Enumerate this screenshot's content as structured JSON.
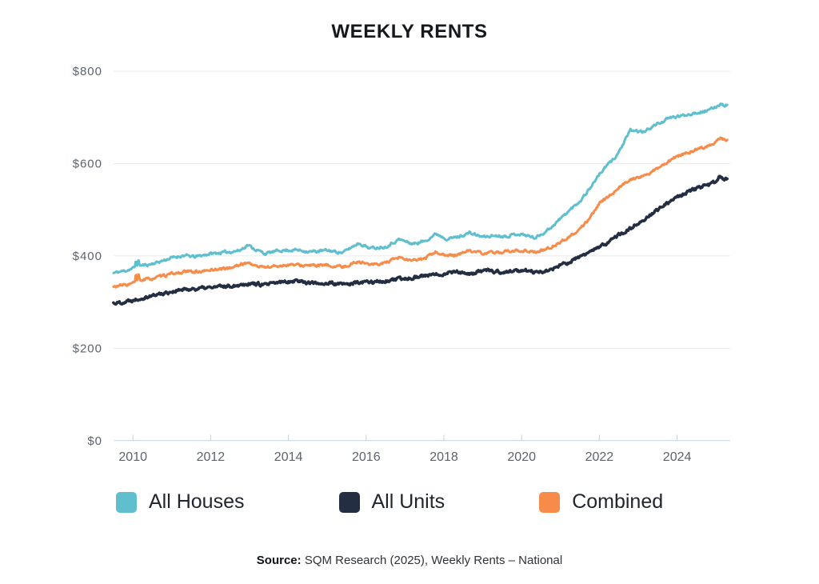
{
  "title": "WEEKLY RENTS",
  "legend": {
    "items": [
      {
        "label": "All Houses",
        "color": "#5fbfce"
      },
      {
        "label": "All Units",
        "color": "#242e42"
      },
      {
        "label": "Combined",
        "color": "#f78c4a"
      }
    ]
  },
  "source": {
    "prefix": "Source:",
    "text": " SQM Research (2025), Weekly Rents – National"
  },
  "chart_data": {
    "type": "line",
    "title": "WEEKLY RENTS",
    "xlabel": "",
    "ylabel": "",
    "unit": "AUD per week",
    "xlim": [
      2009.5,
      2025.3
    ],
    "ylim": [
      0,
      800
    ],
    "grid": "horizontal",
    "legend_position": "bottom",
    "y_ticks": [
      {
        "label": "$800",
        "value": 800
      },
      {
        "label": "$600",
        "value": 600
      },
      {
        "label": "$400",
        "value": 400
      },
      {
        "label": "$200",
        "value": 200
      },
      {
        "label": "$0",
        "value": 0
      }
    ],
    "x_ticks": [
      {
        "label": "2010",
        "value": 2010
      },
      {
        "label": "2012",
        "value": 2012
      },
      {
        "label": "2014",
        "value": 2014
      },
      {
        "label": "2016",
        "value": 2016
      },
      {
        "label": "2018",
        "value": 2018
      },
      {
        "label": "2020",
        "value": 2020
      },
      {
        "label": "2022",
        "value": 2022
      },
      {
        "label": "2024",
        "value": 2024
      }
    ],
    "series": [
      {
        "name": "All Houses",
        "color": "#5fbfce",
        "points": [
          [
            2009.5,
            363
          ],
          [
            2009.8,
            368
          ],
          [
            2010.0,
            373
          ],
          [
            2010.05,
            376
          ],
          [
            2010.08,
            394
          ],
          [
            2010.11,
            378
          ],
          [
            2010.14,
            392
          ],
          [
            2010.18,
            379
          ],
          [
            2010.4,
            381
          ],
          [
            2010.7,
            388
          ],
          [
            2011.0,
            396
          ],
          [
            2011.3,
            401
          ],
          [
            2011.6,
            398
          ],
          [
            2012.0,
            405
          ],
          [
            2012.4,
            408
          ],
          [
            2012.75,
            412
          ],
          [
            2012.95,
            424
          ],
          [
            2013.15,
            414
          ],
          [
            2013.4,
            405
          ],
          [
            2013.8,
            412
          ],
          [
            2014.2,
            413
          ],
          [
            2014.6,
            409
          ],
          [
            2015.0,
            412
          ],
          [
            2015.4,
            407
          ],
          [
            2015.8,
            428
          ],
          [
            2016.1,
            417
          ],
          [
            2016.5,
            420
          ],
          [
            2016.85,
            436
          ],
          [
            2017.2,
            426
          ],
          [
            2017.5,
            432
          ],
          [
            2017.8,
            448
          ],
          [
            2018.1,
            437
          ],
          [
            2018.4,
            442
          ],
          [
            2018.65,
            450
          ],
          [
            2019.0,
            441
          ],
          [
            2019.3,
            444
          ],
          [
            2019.6,
            443
          ],
          [
            2019.9,
            448
          ],
          [
            2020.1,
            445
          ],
          [
            2020.35,
            439
          ],
          [
            2020.6,
            452
          ],
          [
            2020.8,
            465
          ],
          [
            2021.0,
            481
          ],
          [
            2021.25,
            500
          ],
          [
            2021.5,
            519
          ],
          [
            2021.75,
            546
          ],
          [
            2022.0,
            577
          ],
          [
            2022.2,
            596
          ],
          [
            2022.45,
            618
          ],
          [
            2022.65,
            648
          ],
          [
            2022.8,
            672
          ],
          [
            2023.0,
            670
          ],
          [
            2023.15,
            668
          ],
          [
            2023.35,
            680
          ],
          [
            2023.6,
            690
          ],
          [
            2023.85,
            700
          ],
          [
            2024.1,
            703
          ],
          [
            2024.35,
            708
          ],
          [
            2024.6,
            712
          ],
          [
            2024.85,
            716
          ],
          [
            2025.0,
            723
          ],
          [
            2025.12,
            730
          ],
          [
            2025.22,
            726
          ],
          [
            2025.3,
            728
          ]
        ]
      },
      {
        "name": "All Units",
        "color": "#242e42",
        "points": [
          [
            2009.5,
            298
          ],
          [
            2009.75,
            300
          ],
          [
            2010.0,
            305
          ],
          [
            2010.3,
            311
          ],
          [
            2010.6,
            316
          ],
          [
            2011.0,
            323
          ],
          [
            2011.4,
            328
          ],
          [
            2011.8,
            330
          ],
          [
            2012.2,
            333
          ],
          [
            2012.6,
            336
          ],
          [
            2013.0,
            341
          ],
          [
            2013.4,
            337
          ],
          [
            2013.8,
            343
          ],
          [
            2014.2,
            347
          ],
          [
            2014.6,
            341
          ],
          [
            2015.0,
            341
          ],
          [
            2015.4,
            338
          ],
          [
            2015.8,
            342
          ],
          [
            2016.2,
            344
          ],
          [
            2016.6,
            346
          ],
          [
            2017.0,
            351
          ],
          [
            2017.4,
            356
          ],
          [
            2017.8,
            359
          ],
          [
            2018.1,
            364
          ],
          [
            2018.35,
            367
          ],
          [
            2018.6,
            359
          ],
          [
            2018.9,
            366
          ],
          [
            2019.2,
            368
          ],
          [
            2019.5,
            364
          ],
          [
            2019.8,
            367
          ],
          [
            2020.1,
            369
          ],
          [
            2020.4,
            363
          ],
          [
            2020.7,
            369
          ],
          [
            2021.0,
            379
          ],
          [
            2021.3,
            390
          ],
          [
            2021.6,
            402
          ],
          [
            2022.0,
            418
          ],
          [
            2022.4,
            440
          ],
          [
            2022.8,
            460
          ],
          [
            2023.2,
            483
          ],
          [
            2023.6,
            506
          ],
          [
            2024.0,
            526
          ],
          [
            2024.4,
            543
          ],
          [
            2024.7,
            551
          ],
          [
            2024.9,
            556
          ],
          [
            2025.0,
            561
          ],
          [
            2025.1,
            571
          ],
          [
            2025.2,
            566
          ],
          [
            2025.3,
            566
          ]
        ]
      },
      {
        "name": "Combined",
        "color": "#f78c4a",
        "points": [
          [
            2009.5,
            333
          ],
          [
            2009.8,
            337
          ],
          [
            2010.0,
            341
          ],
          [
            2010.05,
            343
          ],
          [
            2010.08,
            361
          ],
          [
            2010.11,
            346
          ],
          [
            2010.14,
            359
          ],
          [
            2010.18,
            347
          ],
          [
            2010.5,
            351
          ],
          [
            2011.0,
            361
          ],
          [
            2011.4,
            366
          ],
          [
            2011.8,
            366
          ],
          [
            2012.0,
            370
          ],
          [
            2012.5,
            374
          ],
          [
            2012.95,
            386
          ],
          [
            2013.2,
            377
          ],
          [
            2013.5,
            376
          ],
          [
            2014.0,
            381
          ],
          [
            2014.5,
            379
          ],
          [
            2015.0,
            379
          ],
          [
            2015.4,
            376
          ],
          [
            2015.8,
            388
          ],
          [
            2016.15,
            381
          ],
          [
            2016.5,
            385
          ],
          [
            2016.85,
            396
          ],
          [
            2017.2,
            389
          ],
          [
            2017.5,
            394
          ],
          [
            2017.8,
            409
          ],
          [
            2018.1,
            399
          ],
          [
            2018.4,
            404
          ],
          [
            2018.65,
            412
          ],
          [
            2019.0,
            405
          ],
          [
            2019.4,
            408
          ],
          [
            2019.8,
            410
          ],
          [
            2020.1,
            412
          ],
          [
            2020.4,
            408
          ],
          [
            2020.7,
            417
          ],
          [
            2021.0,
            430
          ],
          [
            2021.3,
            446
          ],
          [
            2021.6,
            466
          ],
          [
            2021.8,
            487
          ],
          [
            2022.0,
            513
          ],
          [
            2022.25,
            530
          ],
          [
            2022.5,
            548
          ],
          [
            2022.8,
            566
          ],
          [
            2023.1,
            572
          ],
          [
            2023.4,
            584
          ],
          [
            2023.7,
            599
          ],
          [
            2023.95,
            613
          ],
          [
            2024.2,
            622
          ],
          [
            2024.5,
            630
          ],
          [
            2024.8,
            639
          ],
          [
            2025.0,
            648
          ],
          [
            2025.12,
            656
          ],
          [
            2025.22,
            650
          ],
          [
            2025.3,
            652
          ]
        ]
      }
    ]
  }
}
